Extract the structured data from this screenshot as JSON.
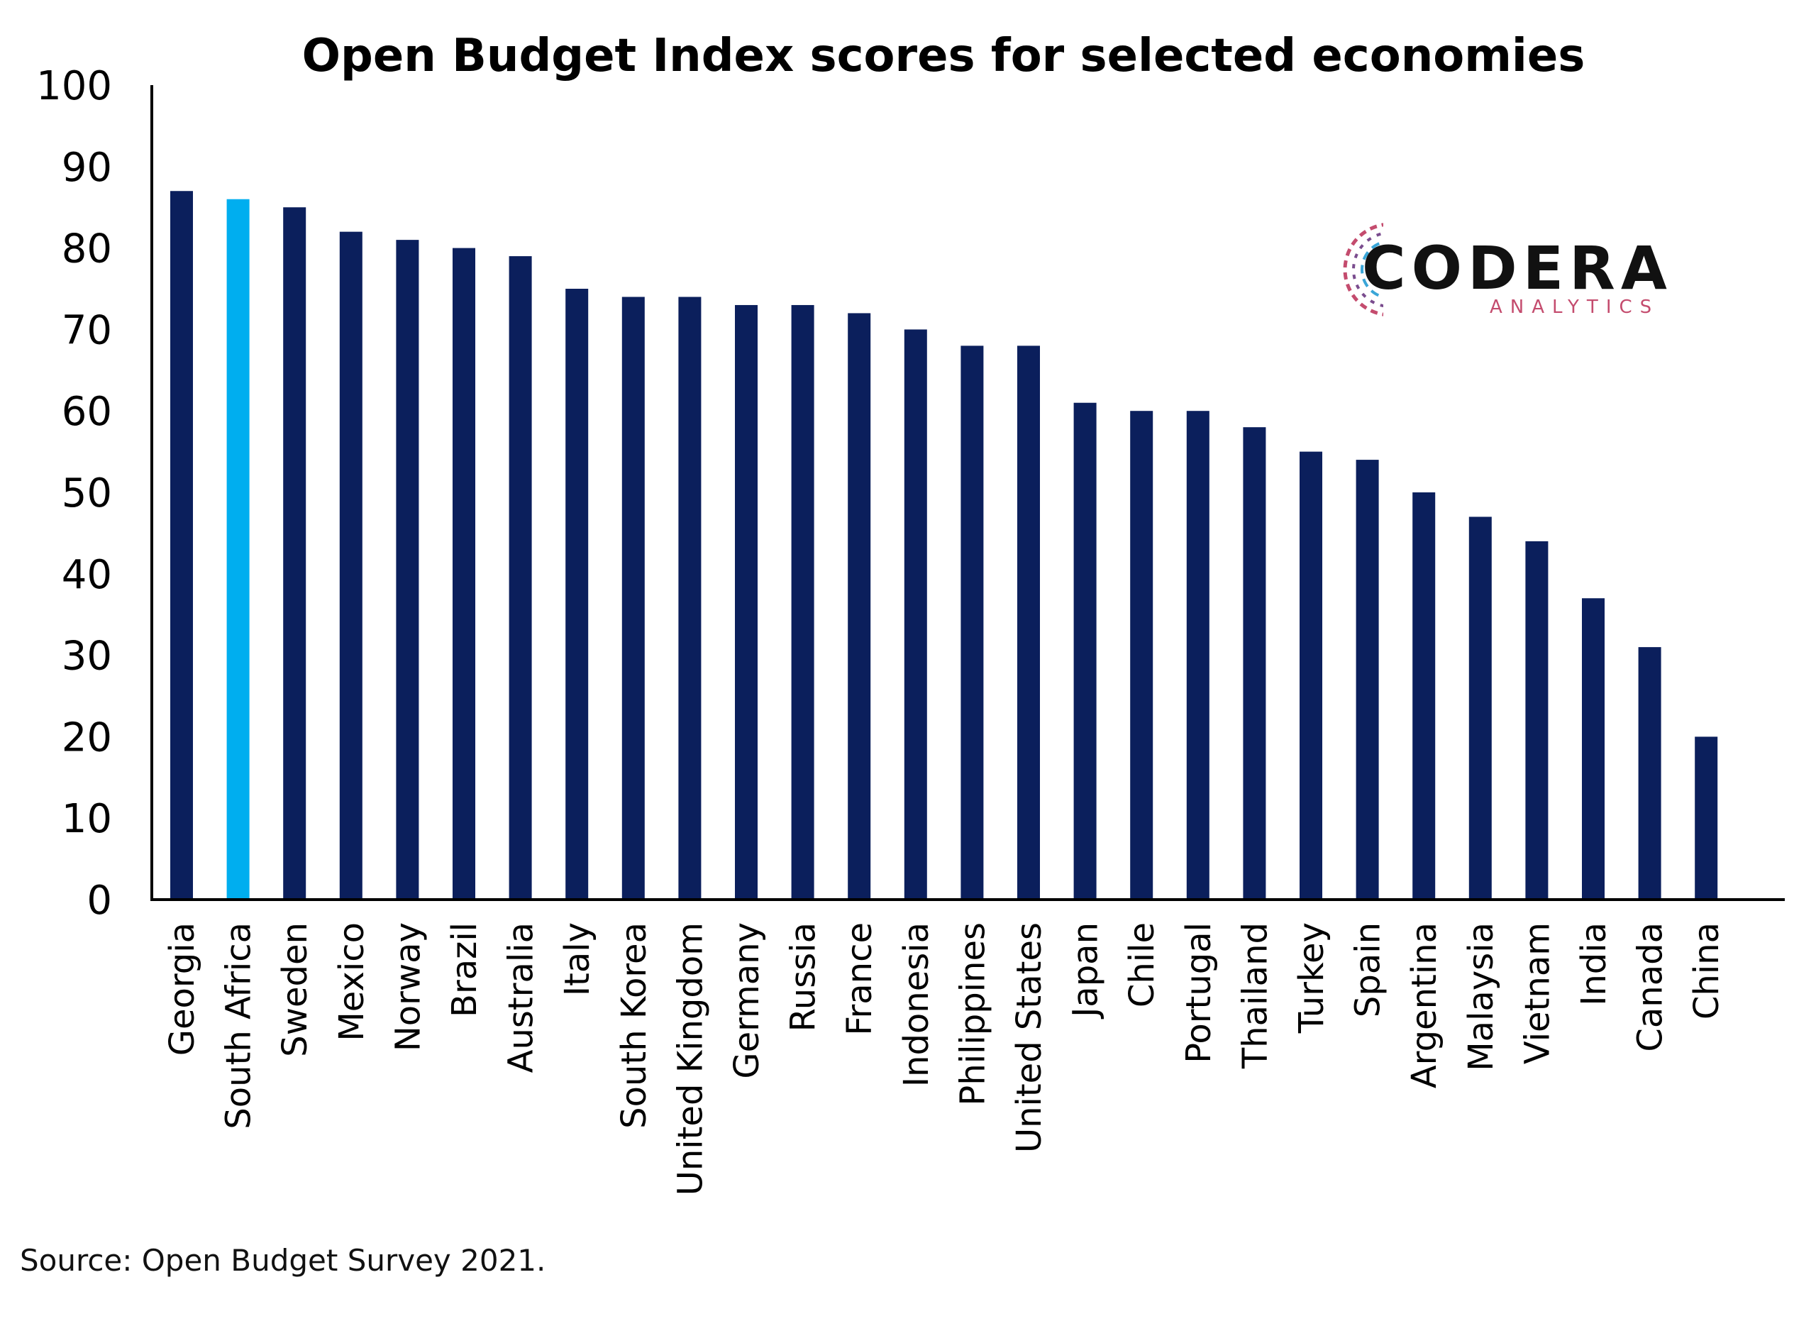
{
  "chart_data": {
    "type": "bar",
    "title": "Open Budget Index scores for selected economies",
    "xlabel": "",
    "ylabel": "",
    "ylim": [
      0,
      100
    ],
    "yticks": [
      0,
      10,
      20,
      30,
      40,
      50,
      60,
      70,
      80,
      90,
      100
    ],
    "grid": false,
    "categories": [
      "Georgia",
      "South Africa",
      "Sweden",
      "Mexico",
      "Norway",
      "Brazil",
      "Australia",
      "Italy",
      "South Korea",
      "United Kingdom",
      "Germany",
      "Russia",
      "France",
      "Indonesia",
      "Philippines",
      "United States",
      "Japan",
      "Chile",
      "Portugal",
      "Thailand",
      "Turkey",
      "Spain",
      "Argentina",
      "Malaysia",
      "Vietnam",
      "India",
      "Canada",
      "China"
    ],
    "values": [
      87,
      86,
      85,
      82,
      81,
      80,
      79,
      75,
      74,
      74,
      73,
      73,
      72,
      70,
      68,
      68,
      61,
      60,
      60,
      58,
      55,
      54,
      50,
      47,
      44,
      37,
      31,
      20
    ],
    "highlight_category": "South Africa",
    "colors": {
      "bar": "#0b1f5c",
      "highlight": "#00aeef",
      "axis": "#000000"
    }
  },
  "source": "Source: Open Budget Survey 2021.",
  "logo": {
    "name": "CODERA",
    "tagline": "ANALYTICS",
    "icon": "circular-circuit-logo-icon"
  }
}
